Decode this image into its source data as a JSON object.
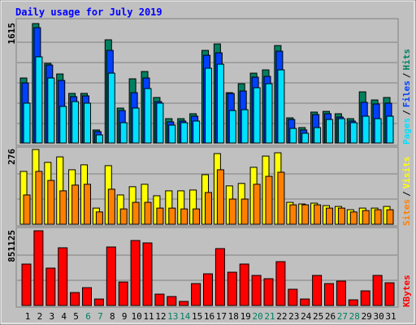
{
  "title": "Daily usage for July 2019",
  "legend_separator": "/",
  "chart_data": [
    {
      "type": "bar",
      "ylim": [
        0,
        1615
      ],
      "yticks": [
        1615
      ],
      "series": [
        {
          "name": "Hits",
          "color": "#008060",
          "values": [
            873,
            1604,
            1069,
            927,
            666,
            666,
            175,
            1386,
            469,
            862,
            960,
            611,
            327,
            327,
            393,
            1244,
            1331,
            676,
            796,
            938,
            982,
            1309,
            338,
            207,
            415,
            425,
            393,
            327,
            687,
            578,
            611
          ]
        },
        {
          "name": "Files",
          "color": "#0040ff",
          "values": [
            807,
            1549,
            1047,
            840,
            622,
            633,
            153,
            1244,
            436,
            676,
            873,
            556,
            284,
            295,
            360,
            1178,
            1211,
            665,
            698,
            884,
            895,
            1233,
            316,
            175,
            382,
            393,
            349,
            295,
            546,
            524,
            535
          ]
        },
        {
          "name": "Pages",
          "color": "#00e0ff",
          "values": [
            535,
            1157,
            873,
            491,
            556,
            535,
            109,
            938,
            273,
            469,
            731,
            535,
            240,
            273,
            295,
            1004,
            1058,
            436,
            447,
            742,
            796,
            982,
            196,
            131,
            207,
            316,
            327,
            273,
            360,
            327,
            360
          ]
        }
      ]
    },
    {
      "type": "bar",
      "ylim": [
        0,
        276
      ],
      "yticks": [
        276
      ],
      "series": [
        {
          "name": "Visits",
          "color": "#ffff00",
          "values": [
            193,
            273,
            226,
            246,
            199,
            217,
            59,
            214,
            107,
            137,
            146,
            104,
            122,
            122,
            125,
            181,
            258,
            140,
            149,
            208,
            249,
            261,
            80,
            74,
            77,
            68,
            65,
            53,
            59,
            59,
            65
          ]
        },
        {
          "name": "Sites",
          "color": "#ff8000",
          "values": [
            107,
            193,
            160,
            122,
            143,
            146,
            45,
            128,
            56,
            80,
            80,
            59,
            59,
            56,
            56,
            116,
            199,
            92,
            92,
            146,
            175,
            190,
            71,
            71,
            71,
            59,
            59,
            45,
            50,
            53,
            53
          ]
        }
      ]
    },
    {
      "type": "bar",
      "ylim": [
        0,
        851125
      ],
      "yticks": [
        851125
      ],
      "categories": [
        1,
        2,
        3,
        4,
        5,
        6,
        7,
        8,
        9,
        10,
        11,
        12,
        13,
        14,
        15,
        16,
        17,
        18,
        19,
        20,
        21,
        22,
        23,
        24,
        25,
        26,
        27,
        28,
        29,
        30,
        31
      ],
      "weekend": [
        5,
        6,
        12,
        13,
        19,
        20,
        26,
        27
      ],
      "weekend_color": "#008060",
      "series": [
        {
          "name": "KBytes",
          "color": "#ff0000",
          "values": [
            466750,
            842000,
            421000,
            650000,
            146000,
            201000,
            73000,
            659000,
            265000,
            732000,
            705000,
            128000,
            101000,
            46000,
            247000,
            357000,
            641000,
            375000,
            467000,
            339000,
            302000,
            494000,
            183000,
            73000,
            339000,
            247000,
            275000,
            64000,
            165000,
            339000,
            256000
          ]
        }
      ]
    }
  ]
}
